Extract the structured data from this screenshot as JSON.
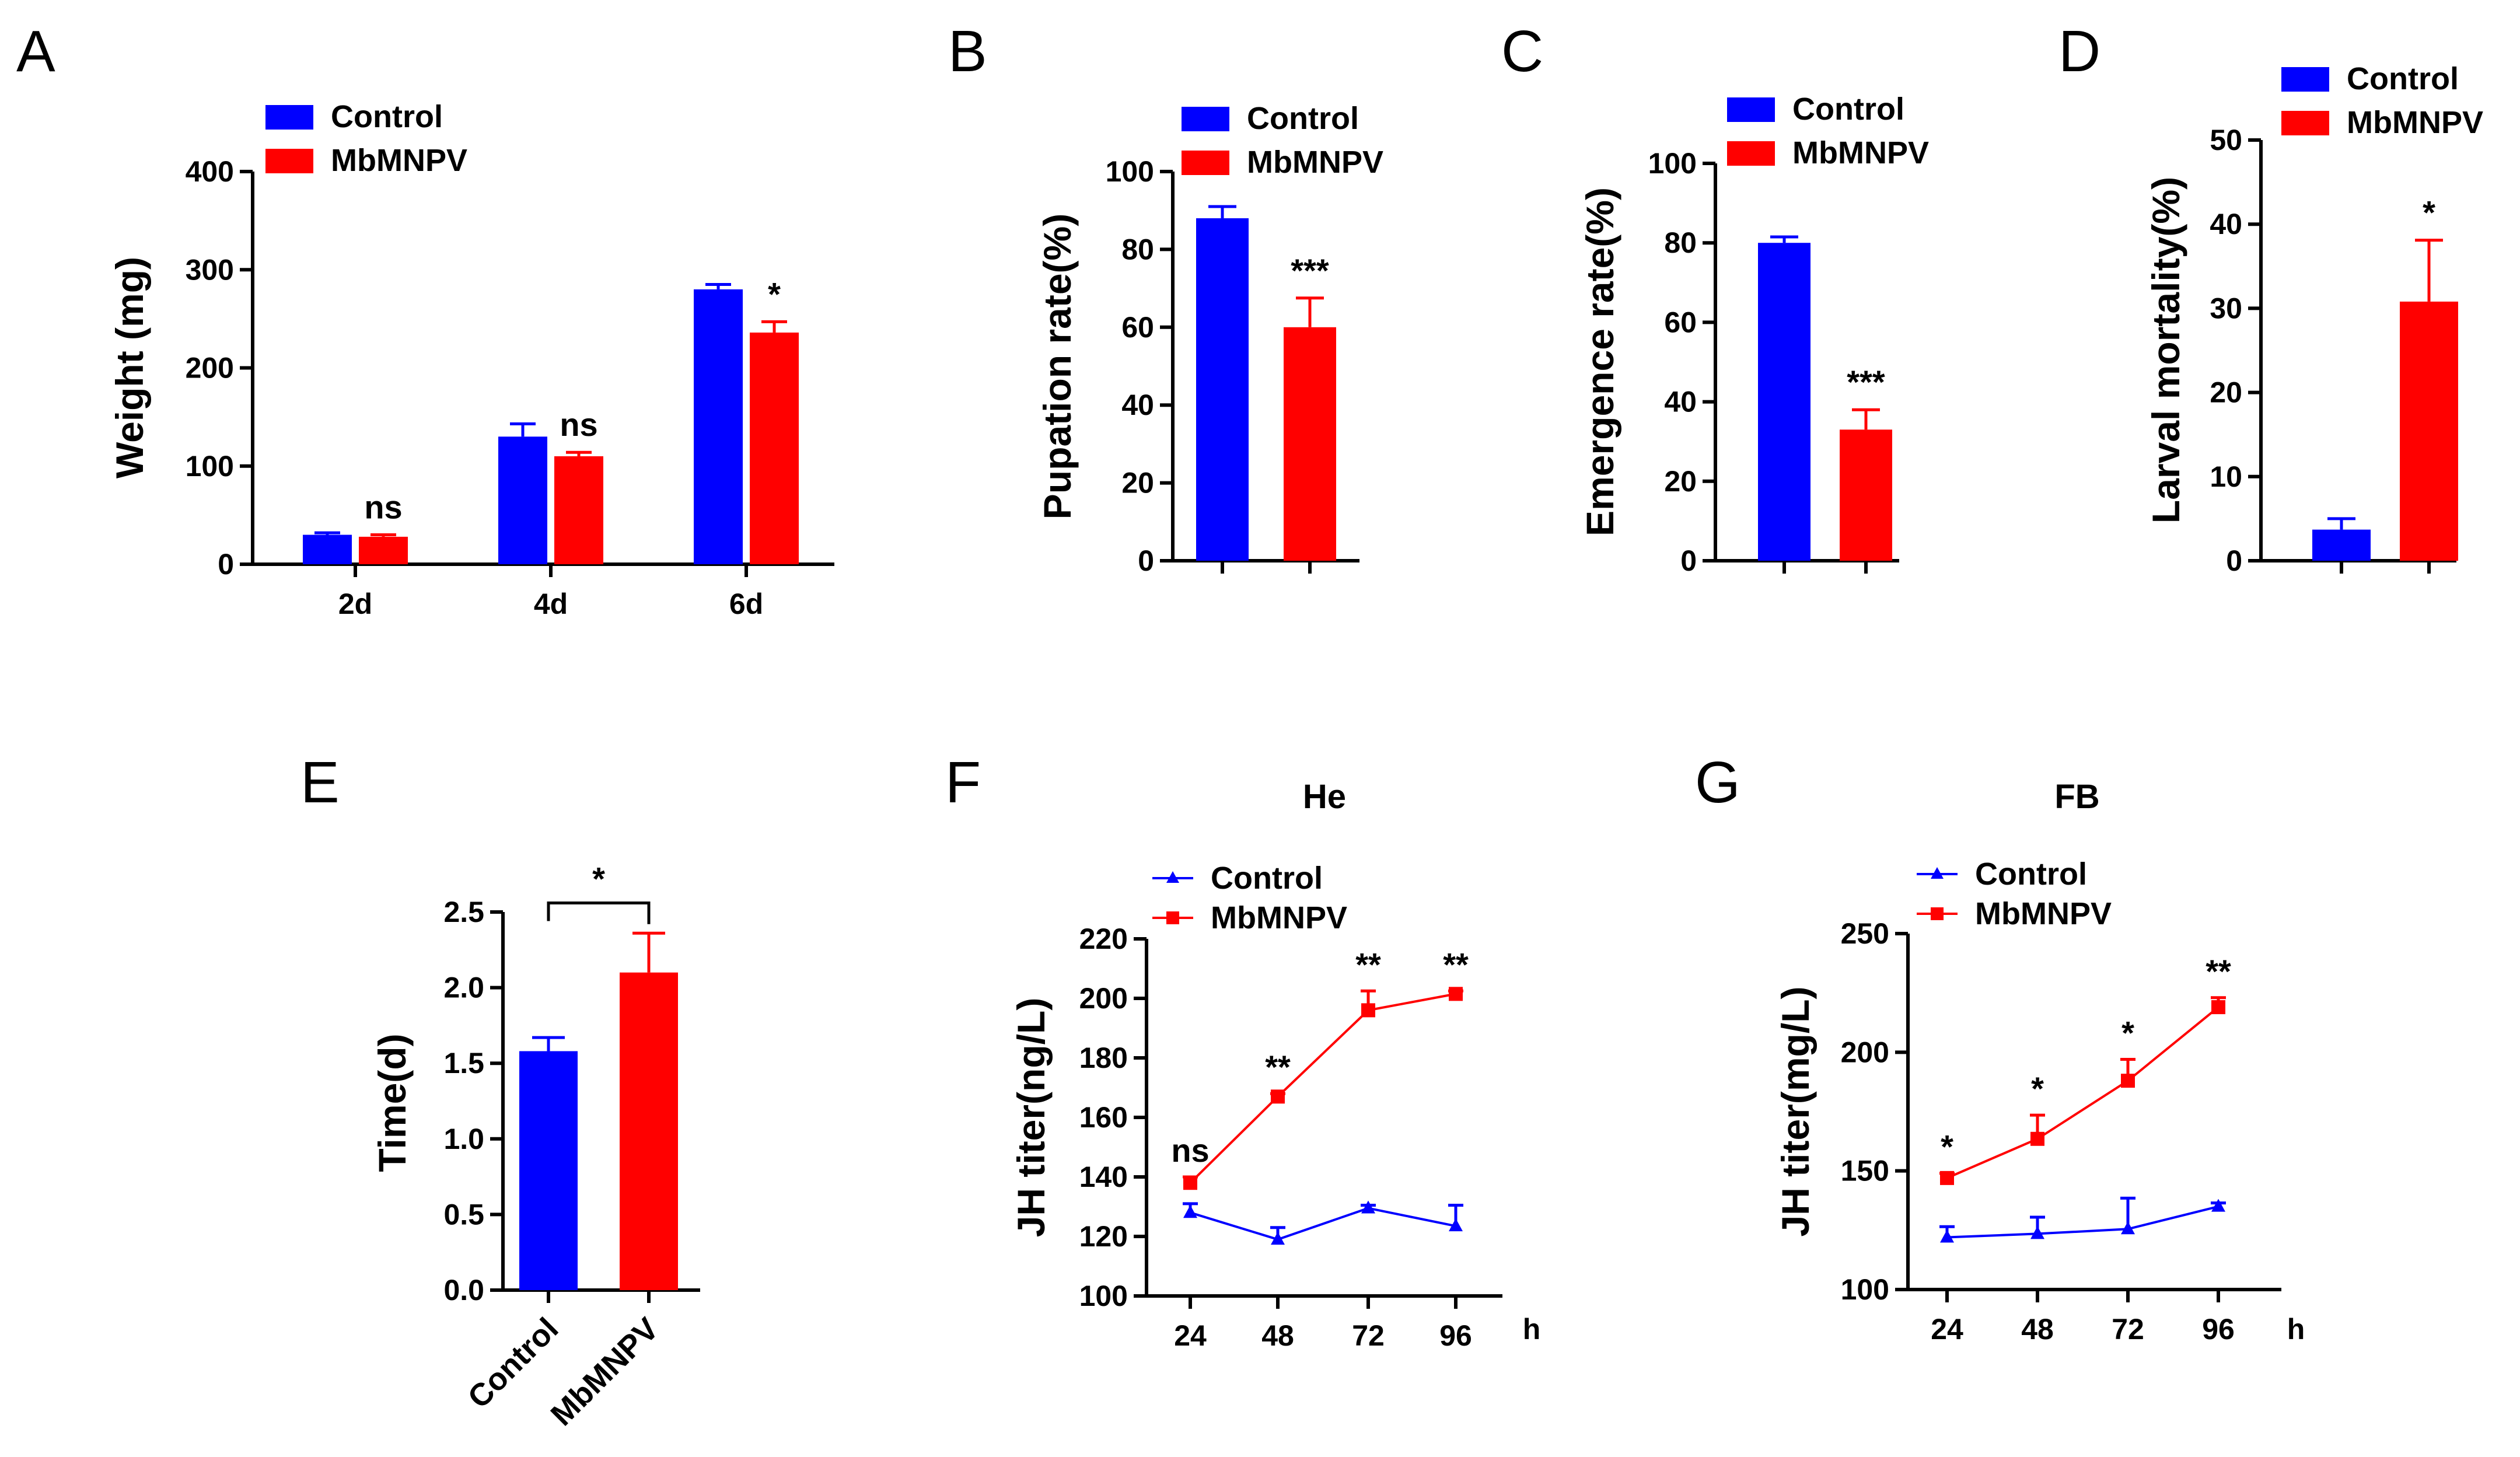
{
  "colors": {
    "control": "#0000ff",
    "virus": "#ff0000",
    "axis": "#000000"
  },
  "legend_labels": [
    "Control",
    "MbMNPV"
  ],
  "chart_data": [
    {
      "panel": "A",
      "type": "bar",
      "ylabel": "Weight (mg)",
      "ylim": [
        0,
        400
      ],
      "yticks": [
        0,
        100,
        200,
        300,
        400
      ],
      "categories": [
        "2d",
        "4d",
        "6d"
      ],
      "series": [
        {
          "name": "Control",
          "values": [
            30,
            130,
            280
          ],
          "errors": [
            2,
            13,
            5
          ]
        },
        {
          "name": "MbMNPV",
          "values": [
            28,
            110,
            236
          ],
          "errors": [
            2,
            4,
            11
          ]
        }
      ],
      "annotations": [
        "ns",
        "ns",
        "*"
      ],
      "legend": "top"
    },
    {
      "panel": "B",
      "type": "bar",
      "ylabel": "Pupation rate(%)",
      "ylim": [
        0,
        100
      ],
      "yticks": [
        0,
        20,
        40,
        60,
        80,
        100
      ],
      "categories": [
        ""
      ],
      "series": [
        {
          "name": "Control",
          "values": [
            88
          ],
          "errors": [
            3
          ]
        },
        {
          "name": "MbMNPV",
          "values": [
            60
          ],
          "errors": [
            7.5
          ]
        }
      ],
      "annotations": [
        "***"
      ],
      "legend": "top"
    },
    {
      "panel": "C",
      "type": "bar",
      "ylabel": "Emergence rate(%)",
      "ylim": [
        0,
        100
      ],
      "yticks": [
        0,
        20,
        40,
        60,
        80,
        100
      ],
      "categories": [
        ""
      ],
      "series": [
        {
          "name": "Control",
          "values": [
            80
          ],
          "errors": [
            1.5
          ]
        },
        {
          "name": "MbMNPV",
          "values": [
            33
          ],
          "errors": [
            5
          ]
        }
      ],
      "annotations": [
        "***"
      ],
      "legend": "top"
    },
    {
      "panel": "D",
      "type": "bar",
      "ylabel": "Larval mortality(%)",
      "ylim": [
        0,
        50
      ],
      "yticks": [
        0,
        10,
        20,
        30,
        40,
        50
      ],
      "categories": [
        ""
      ],
      "series": [
        {
          "name": "Control",
          "values": [
            3.7
          ],
          "errors": [
            1.3
          ]
        },
        {
          "name": "MbMNPV",
          "values": [
            30.8
          ],
          "errors": [
            7.3
          ]
        }
      ],
      "annotations": [
        "*"
      ],
      "legend": "top"
    },
    {
      "panel": "E",
      "type": "bar",
      "ylabel": "Time(d)",
      "ylim": [
        0,
        2.5
      ],
      "yticks": [
        "0.0",
        "0.5",
        "1.0",
        "1.5",
        "2.0",
        "2.5"
      ],
      "categories": [
        "Control",
        "MbMNPV"
      ],
      "series": [
        {
          "name": "Time",
          "values": [
            1.58,
            2.1
          ],
          "errors": [
            0.09,
            0.26
          ]
        }
      ],
      "annotations": [
        "*"
      ]
    },
    {
      "panel": "F",
      "type": "line",
      "title": "He",
      "ylabel": "JH titer(ng/L)",
      "xlabel": "h",
      "ylim": [
        100,
        220
      ],
      "yticks": [
        100,
        120,
        140,
        160,
        180,
        200,
        220
      ],
      "x": [
        24,
        48,
        72,
        96
      ],
      "series": [
        {
          "name": "Control",
          "values": [
            128,
            119,
            129.5,
            123.5
          ],
          "errors": [
            3,
            4,
            1,
            7
          ]
        },
        {
          "name": "MbMNPV",
          "values": [
            138,
            167,
            196,
            201.5
          ],
          "errors": [
            2,
            1,
            6.5,
            1
          ]
        }
      ],
      "annotations": [
        "ns",
        "**",
        "**",
        "**"
      ],
      "legend": "top-left"
    },
    {
      "panel": "G",
      "type": "line",
      "title": "FB",
      "ylabel": "JH titer(mg/L)",
      "xlabel": "h",
      "ylim": [
        100,
        250
      ],
      "yticks": [
        100,
        150,
        200,
        250
      ],
      "x": [
        24,
        48,
        72,
        96
      ],
      "series": [
        {
          "name": "Control",
          "values": [
            122,
            123.5,
            125.5,
            135
          ],
          "errors": [
            4.5,
            7,
            13,
            1.5
          ]
        },
        {
          "name": "MbMNPV",
          "values": [
            147,
            163.5,
            188,
            219
          ],
          "errors": [
            2,
            10,
            9,
            4
          ]
        }
      ],
      "annotations": [
        "*",
        "*",
        "*",
        "**"
      ],
      "legend": "top-left"
    }
  ]
}
